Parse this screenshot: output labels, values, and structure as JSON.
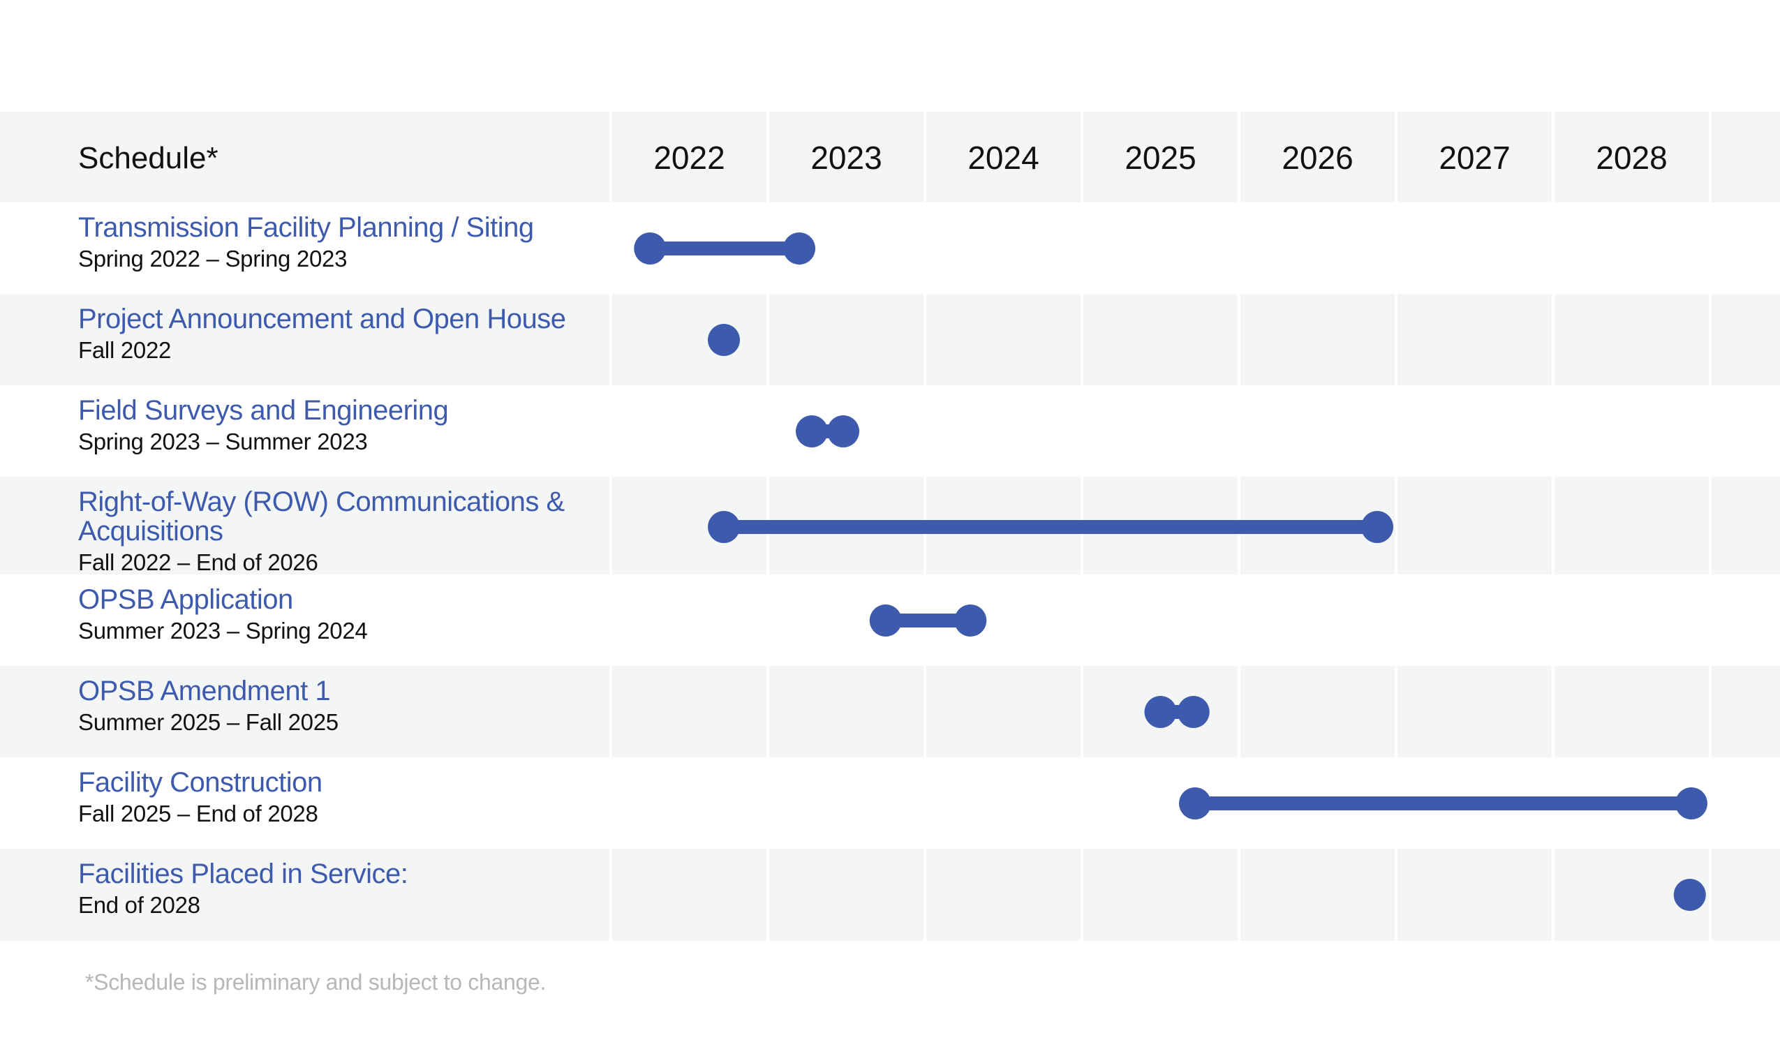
{
  "chart_data": {
    "type": "gantt",
    "header": "Schedule*",
    "years": [
      "2022",
      "2023",
      "2024",
      "2025",
      "2026",
      "2027",
      "2028"
    ],
    "tasks": [
      {
        "name": [
          "Transmission Facility Planning / Siting"
        ],
        "dates": "Spring 2022 – Spring 2023",
        "start": 2022.25,
        "end": 2023.2
      },
      {
        "name": [
          "Project Announcement and Open House"
        ],
        "dates": "Fall 2022",
        "start": 2022.72,
        "end": 2022.72
      },
      {
        "name": [
          "Field Surveys and Engineering"
        ],
        "dates": " Spring 2023 – Summer 2023",
        "start": 2023.28,
        "end": 2023.48
      },
      {
        "name": [
          "Right-of-Way (ROW) Communications &",
          "Acquisitions"
        ],
        "dates": "Fall 2022 – End of 2026",
        "start": 2022.72,
        "end": 2026.88
      },
      {
        "name": [
          "OPSB Application"
        ],
        "dates": "Summer  2023 – Spring 2024",
        "start": 2023.75,
        "end": 2024.29
      },
      {
        "name": [
          "OPSB Amendment 1"
        ],
        "dates": "Summer 2025 – Fall 2025",
        "start": 2025.5,
        "end": 2025.71
      },
      {
        "name": [
          "Facility Construction"
        ],
        "dates": "Fall 2025 – End of 2028",
        "start": 2025.72,
        "end": 2028.88
      },
      {
        "name": [
          "Facilities Placed in Service:"
        ],
        "dates": "End of 2028",
        "start": 2028.87,
        "end": 2028.87
      }
    ],
    "footnote": "*Schedule is preliminary and subject to change.",
    "colors": {
      "bar": "#3d5aad",
      "task_name": "#3d5aad",
      "alt_row": "#f4f6f6",
      "footnote": "#b7b7b7"
    }
  }
}
